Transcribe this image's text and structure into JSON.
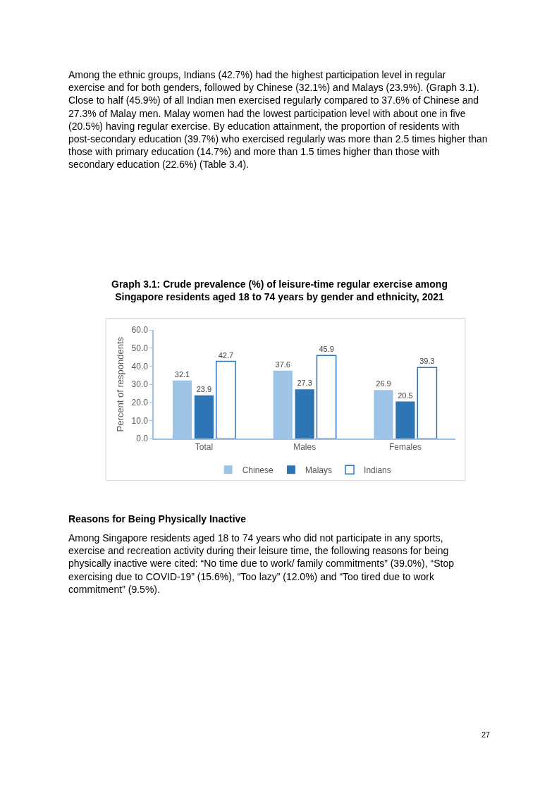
{
  "chart_data": {
    "type": "bar",
    "title": "Graph 3.1: Crude prevalence (%) of leisure-time regular exercise among Singapore residents aged 18 to 74 years by gender and ethnicity, 2021",
    "ylabel": "Percent of respondents",
    "categories": [
      "Total",
      "Males",
      "Females"
    ],
    "series": [
      {
        "name": "Chinese",
        "color": "#9dc3e6",
        "values": [
          32.1,
          37.6,
          26.9
        ]
      },
      {
        "name": "Malays",
        "color": "#2e75b6",
        "values": [
          23.9,
          27.3,
          20.5
        ]
      },
      {
        "name": "Indians",
        "color": "#2e75b6",
        "values": [
          42.7,
          45.9,
          39.3
        ]
      }
    ],
    "ylim": [
      0,
      60
    ],
    "yticks": [
      {
        "value": 0,
        "label": "0.0"
      },
      {
        "value": 10,
        "label": "10.0"
      },
      {
        "value": 20,
        "label": "20.0"
      },
      {
        "value": 30,
        "label": "30.0"
      },
      {
        "value": 40,
        "label": "40.0"
      },
      {
        "value": 50,
        "label": "50.0"
      },
      {
        "value": 60,
        "label": "60.0"
      }
    ],
    "legend": "bottom",
    "data_labels": true,
    "annotations": [
      "Among the ethnic groups, Indians (42.7%) had the highest participation level in regular exercise and for both genders, followed by Chinese (32.1%) and Malays (23.9%). (Graph 3.1). Close to half (45.9%) of all Indian men exercised regularly compared to 37.6% of Chinese and 27.3% of Malay men. Malay women had the lowest participation level with about one in five (20.5%) having regular exercise. By education attainment, the proportion of residents with post-secondary education (39.7%) who exercised regularly was more than 2.5 times higher than those with primary education (14.7%) and more than 1.5 times higher than those with secondary education (22.6%) (Table 3.4).",
      "Reasons for Being Physically Inactive",
      "Among Singapore residents aged 18 to 74 years who did not participate in any sports, exercise and recreation activity during their leisure time, the following reasons for being physically inactive were cited: “No time due to work/ family commitments” (39.0%), “Stop exercising due to COVID-19” (15.6%), “Too lazy” (12.0%) and “Too tired due to work commitment” (9.5%).",
      "27"
    ]
  }
}
